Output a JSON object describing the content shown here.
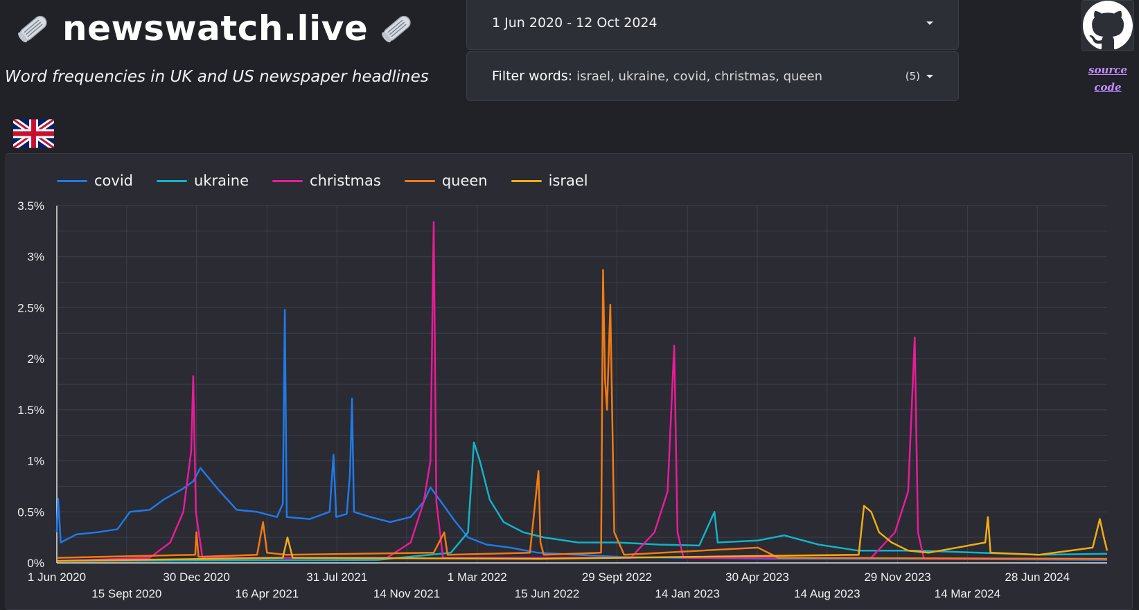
{
  "header": {
    "title": "newswatch.live",
    "subtitle": "Word frequencies in UK and US newspaper headlines",
    "icon": "rolled-newspaper-icon"
  },
  "date_range": {
    "value": "1 Jun 2020 - 12 Oct 2024",
    "icon": "caret-down-icon"
  },
  "filter": {
    "label": "Filter words:",
    "value": "israel, ukraine, covid, christmas, queen",
    "count": "(5)",
    "icon": "caret-down-icon"
  },
  "github": {
    "icon": "github-icon",
    "link_line1": "source",
    "link_line2": "code"
  },
  "region": {
    "icon": "uk-flag-icon"
  },
  "colors": {
    "background": "#212228",
    "card": "#2a2b33",
    "covid": "#1f7ae8",
    "ukraine": "#12b3c9",
    "christmas": "#ea1b9a",
    "queen": "#f27b12",
    "israel": "#f2ad12",
    "link": "#c48cff"
  },
  "chart_data": {
    "type": "line",
    "ylim": [
      0,
      3.5
    ],
    "y_unit": "%",
    "y_ticks": [
      0,
      0.5,
      1,
      1.5,
      2,
      2.5,
      3,
      3.5
    ],
    "y_tick_labels": [
      "0%",
      "0.5%",
      "1%",
      "1.5%",
      "2%",
      "2.5%",
      "3%",
      "3.5%"
    ],
    "x_range": [
      "2020-06-01",
      "2024-10-12"
    ],
    "x_tick_labels": [
      {
        "date": "2020-06-01",
        "label": "1 Jun 2020"
      },
      {
        "date": "2020-09-15",
        "label": "15 Sept 2020"
      },
      {
        "date": "2020-12-30",
        "label": "30 Dec 2020"
      },
      {
        "date": "2021-04-16",
        "label": "16 Apr 2021"
      },
      {
        "date": "2021-07-31",
        "label": "31 Jul 2021"
      },
      {
        "date": "2021-11-14",
        "label": "14 Nov 2021"
      },
      {
        "date": "2022-03-01",
        "label": "1 Mar 2022"
      },
      {
        "date": "2022-06-15",
        "label": "15 Jun 2022"
      },
      {
        "date": "2022-09-29",
        "label": "29 Sept 2022"
      },
      {
        "date": "2023-01-14",
        "label": "14 Jan 2023"
      },
      {
        "date": "2023-04-30",
        "label": "30 Apr 2023"
      },
      {
        "date": "2023-08-14",
        "label": "14 Aug 2023"
      },
      {
        "date": "2023-11-29",
        "label": "29 Nov 2023"
      },
      {
        "date": "2024-03-14",
        "label": "14 Mar 2024"
      },
      {
        "date": "2024-06-28",
        "label": "28 Jun 2024"
      }
    ],
    "legend_position": "top-left",
    "grid": true,
    "series": [
      {
        "name": "covid",
        "color": "#1f7ae8",
        "points": [
          [
            "2020-06-01",
            0.3
          ],
          [
            "2020-06-03",
            0.63
          ],
          [
            "2020-06-07",
            0.2
          ],
          [
            "2020-07-01",
            0.28
          ],
          [
            "2020-08-01",
            0.3
          ],
          [
            "2020-09-01",
            0.33
          ],
          [
            "2020-09-20",
            0.5
          ],
          [
            "2020-10-20",
            0.52
          ],
          [
            "2020-11-10",
            0.62
          ],
          [
            "2020-12-10",
            0.73
          ],
          [
            "2020-12-25",
            0.8
          ],
          [
            "2021-01-05",
            0.93
          ],
          [
            "2021-02-01",
            0.72
          ],
          [
            "2021-03-01",
            0.52
          ],
          [
            "2021-04-01",
            0.5
          ],
          [
            "2021-05-01",
            0.45
          ],
          [
            "2021-05-10",
            0.58
          ],
          [
            "2021-05-13",
            2.48
          ],
          [
            "2021-05-16",
            0.45
          ],
          [
            "2021-06-20",
            0.43
          ],
          [
            "2021-07-20",
            0.5
          ],
          [
            "2021-07-26",
            1.06
          ],
          [
            "2021-07-30",
            0.45
          ],
          [
            "2021-08-15",
            0.48
          ],
          [
            "2021-08-20",
            0.88
          ],
          [
            "2021-08-23",
            1.61
          ],
          [
            "2021-08-26",
            0.5
          ],
          [
            "2021-09-20",
            0.45
          ],
          [
            "2021-10-20",
            0.4
          ],
          [
            "2021-11-20",
            0.45
          ],
          [
            "2021-12-10",
            0.6
          ],
          [
            "2021-12-20",
            0.74
          ],
          [
            "2022-01-05",
            0.6
          ],
          [
            "2022-01-25",
            0.42
          ],
          [
            "2022-02-15",
            0.25
          ],
          [
            "2022-03-15",
            0.18
          ],
          [
            "2022-04-20",
            0.15
          ],
          [
            "2022-06-01",
            0.1
          ],
          [
            "2022-08-01",
            0.08
          ],
          [
            "2022-10-01",
            0.06
          ],
          [
            "2023-01-01",
            0.05
          ],
          [
            "2023-06-01",
            0.04
          ],
          [
            "2024-01-01",
            0.04
          ],
          [
            "2024-10-12",
            0.03
          ]
        ]
      },
      {
        "name": "ukraine",
        "color": "#12b3c9",
        "points": [
          [
            "2020-06-01",
            0.02
          ],
          [
            "2021-10-01",
            0.03
          ],
          [
            "2022-01-20",
            0.1
          ],
          [
            "2022-02-15",
            0.3
          ],
          [
            "2022-02-24",
            1.18
          ],
          [
            "2022-03-05",
            1.0
          ],
          [
            "2022-03-20",
            0.62
          ],
          [
            "2022-04-10",
            0.4
          ],
          [
            "2022-05-10",
            0.3
          ],
          [
            "2022-06-10",
            0.25
          ],
          [
            "2022-08-01",
            0.2
          ],
          [
            "2022-10-01",
            0.2
          ],
          [
            "2022-12-01",
            0.18
          ],
          [
            "2023-02-01",
            0.17
          ],
          [
            "2023-02-24",
            0.5
          ],
          [
            "2023-03-01",
            0.2
          ],
          [
            "2023-05-01",
            0.22
          ],
          [
            "2023-06-10",
            0.27
          ],
          [
            "2023-08-01",
            0.18
          ],
          [
            "2023-10-01",
            0.12
          ],
          [
            "2024-01-01",
            0.12
          ],
          [
            "2024-04-01",
            0.1
          ],
          [
            "2024-07-01",
            0.08
          ],
          [
            "2024-10-12",
            0.09
          ]
        ]
      },
      {
        "name": "christmas",
        "color": "#ea1b9a",
        "points": [
          [
            "2020-06-01",
            0.02
          ],
          [
            "2020-10-20",
            0.05
          ],
          [
            "2020-11-20",
            0.2
          ],
          [
            "2020-12-10",
            0.5
          ],
          [
            "2020-12-22",
            1.1
          ],
          [
            "2020-12-25",
            1.83
          ],
          [
            "2020-12-29",
            0.5
          ],
          [
            "2021-01-08",
            0.05
          ],
          [
            "2021-10-15",
            0.05
          ],
          [
            "2021-11-20",
            0.2
          ],
          [
            "2021-12-10",
            0.6
          ],
          [
            "2021-12-20",
            1.0
          ],
          [
            "2021-12-25",
            3.34
          ],
          [
            "2021-12-29",
            0.6
          ],
          [
            "2022-01-08",
            0.05
          ],
          [
            "2022-10-20",
            0.05
          ],
          [
            "2022-11-25",
            0.3
          ],
          [
            "2022-12-15",
            0.7
          ],
          [
            "2022-12-25",
            2.13
          ],
          [
            "2022-12-30",
            0.3
          ],
          [
            "2023-01-08",
            0.05
          ],
          [
            "2023-10-20",
            0.05
          ],
          [
            "2023-11-25",
            0.3
          ],
          [
            "2023-12-15",
            0.7
          ],
          [
            "2023-12-25",
            2.21
          ],
          [
            "2023-12-30",
            0.3
          ],
          [
            "2024-01-08",
            0.04
          ],
          [
            "2024-10-12",
            0.04
          ]
        ]
      },
      {
        "name": "queen",
        "color": "#f27b12",
        "points": [
          [
            "2020-06-01",
            0.05
          ],
          [
            "2020-12-28",
            0.08
          ],
          [
            "2020-12-30",
            0.3
          ],
          [
            "2021-01-02",
            0.06
          ],
          [
            "2021-04-01",
            0.08
          ],
          [
            "2021-04-10",
            0.4
          ],
          [
            "2021-04-16",
            0.1
          ],
          [
            "2021-05-15",
            0.08
          ],
          [
            "2021-12-25",
            0.1
          ],
          [
            "2022-01-10",
            0.3
          ],
          [
            "2022-01-15",
            0.08
          ],
          [
            "2022-05-20",
            0.1
          ],
          [
            "2022-06-02",
            0.9
          ],
          [
            "2022-06-05",
            0.2
          ],
          [
            "2022-06-10",
            0.08
          ],
          [
            "2022-09-05",
            0.1
          ],
          [
            "2022-09-08",
            2.87
          ],
          [
            "2022-09-11",
            1.8
          ],
          [
            "2022-09-14",
            1.5
          ],
          [
            "2022-09-19",
            2.53
          ],
          [
            "2022-09-25",
            0.3
          ],
          [
            "2022-10-10",
            0.08
          ],
          [
            "2023-05-01",
            0.15
          ],
          [
            "2023-06-01",
            0.05
          ],
          [
            "2024-10-12",
            0.04
          ]
        ]
      },
      {
        "name": "israel",
        "color": "#f2ad12",
        "points": [
          [
            "2020-06-01",
            0.02
          ],
          [
            "2021-05-10",
            0.05
          ],
          [
            "2021-05-17",
            0.25
          ],
          [
            "2021-05-25",
            0.05
          ],
          [
            "2022-06-01",
            0.04
          ],
          [
            "2023-10-01",
            0.08
          ],
          [
            "2023-10-09",
            0.56
          ],
          [
            "2023-10-20",
            0.5
          ],
          [
            "2023-11-01",
            0.3
          ],
          [
            "2023-11-20",
            0.2
          ],
          [
            "2023-12-15",
            0.12
          ],
          [
            "2024-01-15",
            0.1
          ],
          [
            "2024-04-10",
            0.2
          ],
          [
            "2024-04-14",
            0.45
          ],
          [
            "2024-04-18",
            0.1
          ],
          [
            "2024-07-01",
            0.08
          ],
          [
            "2024-09-20",
            0.15
          ],
          [
            "2024-10-01",
            0.43
          ],
          [
            "2024-10-07",
            0.25
          ],
          [
            "2024-10-12",
            0.12
          ]
        ]
      }
    ]
  }
}
